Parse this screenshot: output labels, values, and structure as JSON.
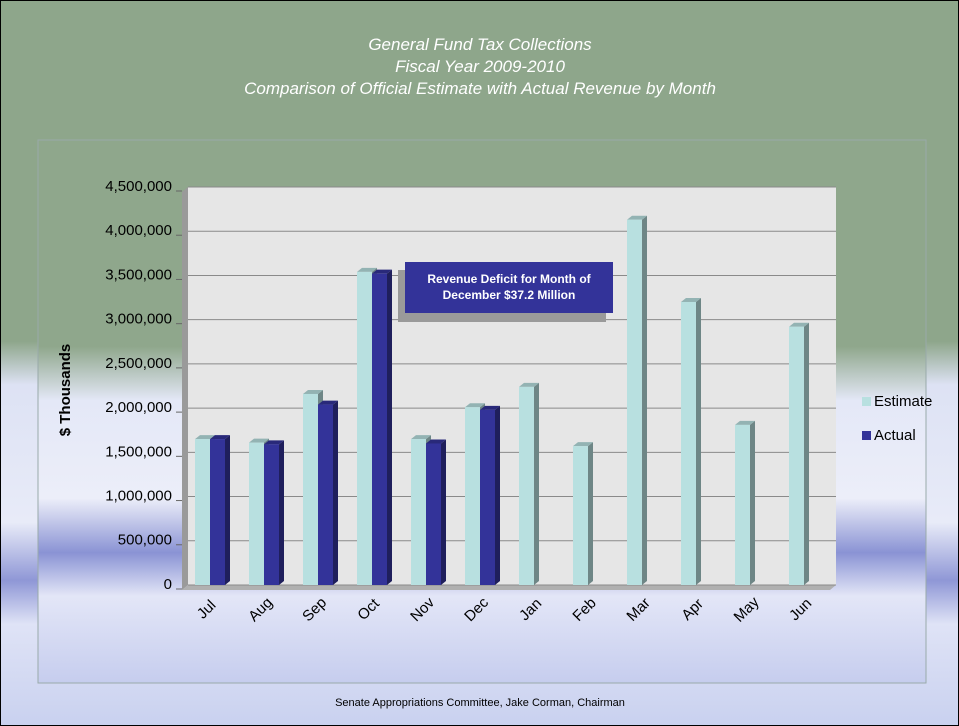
{
  "chart_data": {
    "type": "bar",
    "title": [
      "General Fund Tax Collections",
      "Fiscal Year 2009-2010",
      "Comparison of Official Estimate with Actual Revenue by Month"
    ],
    "y_label": "$ Thousands",
    "categories": [
      "Jul",
      "Aug",
      "Sep",
      "Oct",
      "Nov",
      "Dec",
      "Jan",
      "Feb",
      "Mar",
      "Apr",
      "May",
      "Jun"
    ],
    "series": [
      {
        "name": "Estimate",
        "color": "#b8e0e0",
        "values": [
          1650000,
          1610000,
          2160000,
          3540000,
          1650000,
          2010000,
          2240000,
          1570000,
          4130000,
          3200000,
          1810000,
          2920000
        ]
      },
      {
        "name": "Actual",
        "color": "#333399",
        "values": [
          1650000,
          1590000,
          2040000,
          3520000,
          1600000,
          1980000,
          null,
          null,
          null,
          null,
          null,
          null
        ]
      }
    ],
    "ylim": [
      0,
      4500000
    ],
    "yticks": [
      0,
      {
        "value": 500000,
        "label": "500,000"
      },
      {
        "value": 1000000,
        "label": "1,000,000"
      },
      {
        "value": 1500000,
        "label": "1,500,000"
      },
      {
        "value": 2000000,
        "label": "2,000,000"
      },
      {
        "value": 2500000,
        "label": "2,500,000"
      },
      {
        "value": 3000000,
        "label": "3,000,000"
      },
      {
        "value": 3500000,
        "label": "3,500,000"
      },
      {
        "value": 4000000,
        "label": "4,000,000"
      },
      {
        "value": 4500000,
        "label": "4,500,000"
      }
    ],
    "grid": true,
    "legend": "right",
    "annotation": [
      "Revenue Deficit for Month of",
      "December $37.2 Million"
    ]
  },
  "footer": "Senate Appropriations Committee, Jake Corman, Chairman"
}
